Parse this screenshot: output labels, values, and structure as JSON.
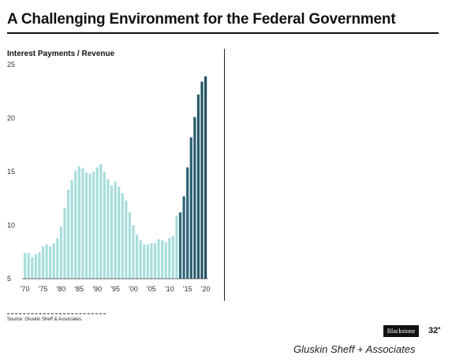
{
  "header": {
    "title": "A Challenging Environment for the Federal Government"
  },
  "footer": {
    "source": "Source: Gluskin Sheff & Associates.",
    "logo_text": "Blackstone",
    "page_number": "32",
    "page_mark": "*",
    "brand": "Gluskin Sheff + Associates"
  },
  "colors": {
    "historical_bar": "#a8dedd",
    "projected_bar_start": "#2f6a7c",
    "projected_bar_end": "#1f4f60",
    "title_rule": "#111111"
  },
  "chart_data": {
    "type": "bar",
    "title": "",
    "ylabel": "Interest Payments / Revenue",
    "xlabel": "",
    "ylim": [
      5,
      25
    ],
    "yticks": [
      5,
      10,
      15,
      20,
      25
    ],
    "xtick_labels": [
      "'70",
      "'75",
      "'80",
      "'85",
      "'90",
      "'95",
      "'00",
      "'05",
      "'10",
      "'15",
      "'20"
    ],
    "grid": false,
    "legend": "none",
    "categories": [
      1970,
      1971,
      1972,
      1973,
      1974,
      1975,
      1976,
      1977,
      1978,
      1979,
      1980,
      1981,
      1982,
      1983,
      1984,
      1985,
      1986,
      1987,
      1988,
      1989,
      1990,
      1991,
      1992,
      1993,
      1994,
      1995,
      1996,
      1997,
      1998,
      1999,
      2000,
      2001,
      2002,
      2003,
      2004,
      2005,
      2006,
      2007,
      2008,
      2009,
      2010,
      2011,
      2012,
      2013,
      2014,
      2015,
      2016,
      2017,
      2018,
      2019,
      2020
    ],
    "series": [
      {
        "values": [
          7.4,
          7.4,
          7.0,
          7.3,
          7.5,
          8.0,
          8.2,
          8.0,
          8.3,
          8.8,
          9.9,
          11.6,
          13.3,
          14.2,
          15.1,
          15.5,
          15.3,
          14.9,
          14.8,
          15.0,
          15.4,
          15.7,
          15.0,
          14.3,
          13.7,
          14.1,
          13.6,
          13.0,
          12.3,
          11.2,
          10.0,
          9.1,
          8.6,
          8.2,
          8.2,
          8.3,
          8.3,
          8.7,
          8.6,
          8.4,
          8.8,
          9.0,
          10.9,
          11.2,
          12.7,
          15.4,
          18.2,
          20.1,
          22.2,
          23.4,
          23.9
        ]
      }
    ],
    "projection_start": 2013
  }
}
